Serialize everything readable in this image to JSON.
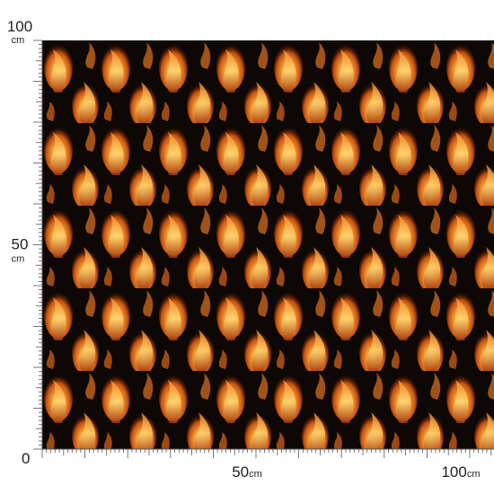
{
  "origin": 0,
  "vertical_ruler": {
    "labels": [
      {
        "number": 100,
        "unit": "cm"
      },
      {
        "number": 50,
        "unit": "cm"
      }
    ]
  },
  "horizontal_ruler": {
    "labels": [
      {
        "number": 50,
        "unit": "cm"
      },
      {
        "number": 100,
        "unit": "cm"
      }
    ]
  }
}
